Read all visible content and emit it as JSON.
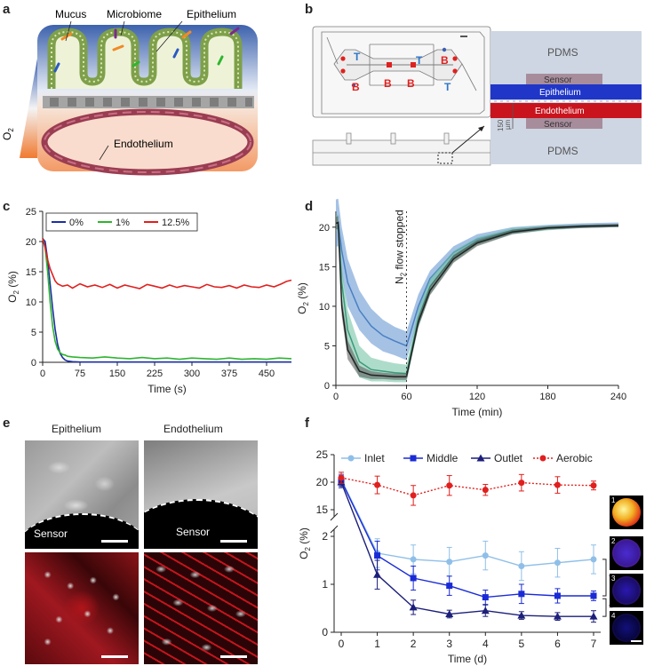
{
  "panel_labels": {
    "a": "a",
    "b": "b",
    "c": "c",
    "d": "d",
    "e": "e",
    "f": "f"
  },
  "panel_a": {
    "labels": {
      "mucus": "Mucus",
      "microbiome": "Microbiome",
      "epithelium": "Epithelium",
      "endothelium": "Endothelium",
      "o2_main": "O",
      "o2_sub": "2"
    }
  },
  "panel_b": {
    "letters": [
      "T",
      "B",
      "B",
      "T",
      "B",
      "B",
      "T"
    ],
    "pdms_top": "PDMS",
    "pdms_bottom": "PDMS",
    "sensor_top": "Sensor",
    "epithelium": "Epithelium",
    "endothelium": "Endothelium",
    "sensor_bottom": "Sensor",
    "scale_value": "150",
    "scale_unit": "µm"
  },
  "panel_e": {
    "col1": "Epithelium",
    "col2": "Endothelium",
    "sensor1": "Sensor",
    "sensor2": "Sensor"
  },
  "panel_f_side": {
    "insets": [
      "1",
      "2",
      "3",
      "4"
    ]
  },
  "chart_data": [
    {
      "id": "c",
      "type": "line",
      "xlabel": "Time (s)",
      "ylabel_main": "O",
      "ylabel_sub": "2",
      "ylabel_tail": " (%)",
      "xlim": [
        0,
        500
      ],
      "ylim": [
        0,
        25
      ],
      "xticks": [
        0,
        75,
        150,
        225,
        300,
        375,
        450
      ],
      "yticks": [
        0,
        5,
        10,
        15,
        20,
        25
      ],
      "legend_position": "top-left",
      "colors": {
        "0%": "#1b2fa3",
        "1%": "#2fb52f",
        "12.5%": "#e0201e"
      },
      "series": [
        {
          "name": "0%",
          "x": [
            0,
            5,
            10,
            15,
            20,
            25,
            30,
            35,
            40,
            45,
            50,
            60,
            75,
            100,
            150,
            200,
            250,
            300,
            350,
            400,
            450,
            500
          ],
          "y": [
            20.5,
            20,
            17,
            13,
            9,
            5.5,
            3,
            1.5,
            0.8,
            0.4,
            0.2,
            0.1,
            0.05,
            0.05,
            0.05,
            0.05,
            0.05,
            0.05,
            0.05,
            0.05,
            0.05,
            0.05
          ]
        },
        {
          "name": "1%",
          "x": [
            0,
            5,
            10,
            15,
            20,
            25,
            30,
            35,
            40,
            45,
            50,
            60,
            75,
            100,
            125,
            150,
            175,
            200,
            225,
            250,
            275,
            300,
            325,
            350,
            375,
            400,
            425,
            450,
            475,
            500
          ],
          "y": [
            20.5,
            19,
            15,
            10,
            6,
            3.5,
            2.2,
            1.6,
            1.3,
            1.2,
            1.0,
            0.9,
            0.8,
            0.7,
            0.9,
            0.7,
            0.6,
            0.8,
            0.6,
            0.7,
            0.5,
            0.7,
            0.6,
            0.5,
            0.7,
            0.5,
            0.6,
            0.5,
            0.7,
            0.6
          ]
        },
        {
          "name": "12.5%",
          "x": [
            0,
            5,
            10,
            15,
            20,
            25,
            30,
            40,
            50,
            60,
            75,
            90,
            105,
            120,
            135,
            150,
            165,
            180,
            195,
            210,
            225,
            240,
            255,
            270,
            285,
            300,
            315,
            330,
            345,
            360,
            375,
            390,
            405,
            420,
            435,
            450,
            465,
            480,
            490,
            500
          ],
          "y": [
            20.5,
            19,
            17,
            15.5,
            14.5,
            13.5,
            13,
            12.6,
            12.8,
            12.3,
            13,
            12.5,
            12.8,
            12.4,
            12.9,
            12.3,
            12.8,
            12.5,
            12.2,
            12.9,
            12.6,
            12.3,
            12.8,
            12.4,
            12.7,
            12.5,
            12.3,
            12.9,
            12.5,
            12.4,
            12.7,
            12.3,
            12.8,
            12.5,
            12.4,
            12.8,
            12.5,
            13,
            13.4,
            13.6
          ]
        }
      ]
    },
    {
      "id": "d",
      "type": "area",
      "xlabel": "Time (min)",
      "ylabel_main": "O",
      "ylabel_sub": "2",
      "ylabel_tail": " (%)",
      "xlim": [
        0,
        240
      ],
      "ylim": [
        0,
        22
      ],
      "xticks": [
        0,
        60,
        120,
        180,
        240
      ],
      "yticks": [
        0,
        5,
        10,
        15,
        20
      ],
      "annotation_main": "N",
      "annotation_sub": "2",
      "annotation_tail": " flow stopped",
      "annotation_x": 60,
      "series": [
        {
          "color": "#4a7fc1",
          "fill": "#5b8fcf",
          "x": [
            0,
            2,
            5,
            10,
            20,
            30,
            40,
            50,
            60,
            70,
            80,
            100,
            120,
            150,
            180,
            210,
            240
          ],
          "y": [
            20.5,
            20.6,
            17,
            13,
            9.5,
            7.5,
            6.3,
            5.6,
            5.0,
            10,
            13.5,
            16.8,
            18.5,
            19.6,
            20.0,
            20.2,
            20.3
          ],
          "band": [
            3,
            3,
            3,
            3,
            2.5,
            2.2,
            2,
            1.8,
            1.8,
            1.5,
            1,
            0.8,
            0.6,
            0.4,
            0.3,
            0.3,
            0.3
          ]
        },
        {
          "color": "#3a9a7a",
          "fill": "#6cbf9f",
          "x": [
            0,
            2,
            5,
            10,
            20,
            30,
            40,
            50,
            60,
            70,
            80,
            100,
            120,
            150,
            180,
            210,
            240
          ],
          "y": [
            20.5,
            20.6,
            13,
            7,
            3,
            2,
            1.8,
            1.6,
            1.5,
            8.5,
            12.5,
            16.3,
            18.2,
            19.5,
            19.9,
            20.1,
            20.2
          ],
          "band": [
            1,
            1,
            2,
            2.5,
            2,
            1.5,
            1.3,
            1.2,
            1.1,
            1.2,
            1,
            0.7,
            0.5,
            0.4,
            0.3,
            0.2,
            0.2
          ]
        },
        {
          "color": "#222222",
          "fill": "#555555",
          "x": [
            0,
            2,
            5,
            10,
            20,
            30,
            40,
            50,
            60,
            70,
            80,
            100,
            120,
            150,
            180,
            210,
            240
          ],
          "y": [
            20.5,
            20.6,
            10,
            4.5,
            1.8,
            1.3,
            1.2,
            1.1,
            1.1,
            8,
            12,
            16,
            18,
            19.4,
            19.9,
            20.1,
            20.2
          ],
          "band": [
            0.8,
            0.8,
            1.2,
            1.2,
            0.7,
            0.5,
            0.4,
            0.4,
            0.4,
            0.6,
            0.6,
            0.5,
            0.4,
            0.3,
            0.2,
            0.2,
            0.2
          ]
        }
      ]
    },
    {
      "id": "f",
      "type": "line",
      "xlabel": "Time (d)",
      "ylabel_main": "O",
      "ylabel_sub": "2",
      "ylabel_tail": " (%)",
      "xticks": [
        0,
        1,
        2,
        3,
        4,
        5,
        6,
        7
      ],
      "yticks_upper": [
        15,
        20,
        25
      ],
      "yticks_lower": [
        0,
        1,
        2
      ],
      "broken_axis": true,
      "legend_position": "top",
      "significance": [
        "*",
        "*"
      ],
      "series": [
        {
          "name": "Inlet",
          "color": "#8fbfe8",
          "marker": "circle",
          "x": [
            0,
            1,
            2,
            3,
            4,
            5,
            6,
            7
          ],
          "y": [
            20.5,
            1.65,
            1.52,
            1.47,
            1.6,
            1.38,
            1.45,
            1.52
          ],
          "err": [
            1,
            0.3,
            0.3,
            0.3,
            0.3,
            0.3,
            0.3,
            0.3
          ]
        },
        {
          "name": "Middle",
          "color": "#1a2bd6",
          "marker": "square",
          "x": [
            0,
            1,
            2,
            3,
            4,
            5,
            6,
            7
          ],
          "y": [
            20.3,
            1.6,
            1.13,
            0.97,
            0.73,
            0.8,
            0.76,
            0.76
          ],
          "err": [
            1,
            0.3,
            0.25,
            0.2,
            0.15,
            0.2,
            0.15,
            0.1
          ]
        },
        {
          "name": "Outlet",
          "color": "#1c1f7a",
          "marker": "triangle",
          "x": [
            0,
            1,
            2,
            3,
            4,
            5,
            6,
            7
          ],
          "y": [
            20.0,
            1.2,
            0.52,
            0.38,
            0.45,
            0.35,
            0.33,
            0.33
          ],
          "err": [
            1,
            0.3,
            0.15,
            0.08,
            0.12,
            0.08,
            0.08,
            0.12
          ]
        },
        {
          "name": "Aerobic",
          "color": "#e0201e",
          "marker": "circle",
          "dashed": true,
          "x": [
            0,
            1,
            2,
            3,
            4,
            5,
            6,
            7
          ],
          "y": [
            20.8,
            19.5,
            17.6,
            19.4,
            18.6,
            19.9,
            19.5,
            19.4
          ],
          "err": [
            1,
            1.6,
            1.8,
            1.8,
            1.0,
            1.5,
            1.5,
            0.8
          ]
        }
      ]
    }
  ]
}
